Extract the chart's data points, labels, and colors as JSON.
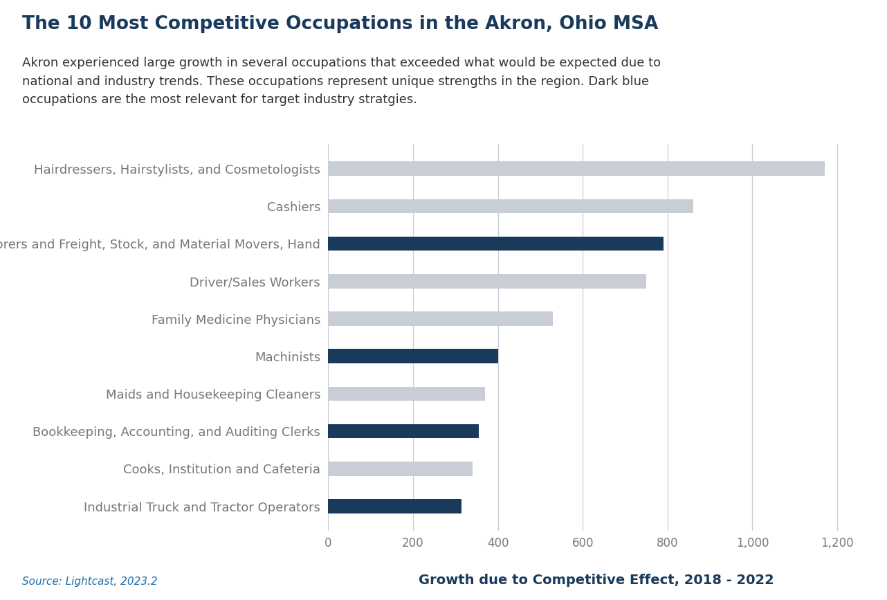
{
  "title": "The 10 Most Competitive Occupations in the Akron, Ohio MSA",
  "subtitle": "Akron experienced large growth in several occupations that exceeded what would be expected due to\nnational and industry trends. These occupations represent unique strengths in the region. Dark blue\noccupations are the most relevant for target industry stratgies.",
  "categories": [
    "Hairdressers, Hairstylists, and Cosmetologists",
    "Cashiers",
    "Laborers and Freight, Stock, and Material Movers, Hand",
    "Driver/Sales Workers",
    "Family Medicine Physicians",
    "Machinists",
    "Maids and Housekeeping Cleaners",
    "Bookkeeping, Accounting, and Auditing Clerks",
    "Cooks, Institution and Cafeteria",
    "Industrial Truck and Tractor Operators"
  ],
  "values": [
    1170,
    860,
    790,
    750,
    530,
    400,
    370,
    355,
    340,
    315
  ],
  "colors": [
    "#c8cdd6",
    "#c8cdd6",
    "#1a3a5c",
    "#c8cdd6",
    "#c8cdd6",
    "#1a3a5c",
    "#c8cdd6",
    "#1a3a5c",
    "#c8cdd6",
    "#1a3a5c"
  ],
  "xlabel": "Growth due to Competitive Effect, 2018 - 2022",
  "xlim": [
    0,
    1265
  ],
  "xticks": [
    0,
    200,
    400,
    600,
    800,
    1000,
    1200
  ],
  "xticklabels": [
    "0",
    "200",
    "400",
    "600",
    "800",
    "1,000",
    "1,200"
  ],
  "source": "Source: Lightcast, 2023.2",
  "background_color": "#ffffff",
  "title_color": "#1a3a5c",
  "subtitle_color": "#333333",
  "xlabel_color": "#1a3a5c",
  "source_color": "#1a6fa8",
  "grid_color": "#c8cdd6",
  "title_fontsize": 19,
  "subtitle_fontsize": 13,
  "xlabel_fontsize": 14,
  "ylabel_fontsize": 13,
  "tick_fontsize": 12,
  "source_fontsize": 11,
  "bar_height": 0.38
}
